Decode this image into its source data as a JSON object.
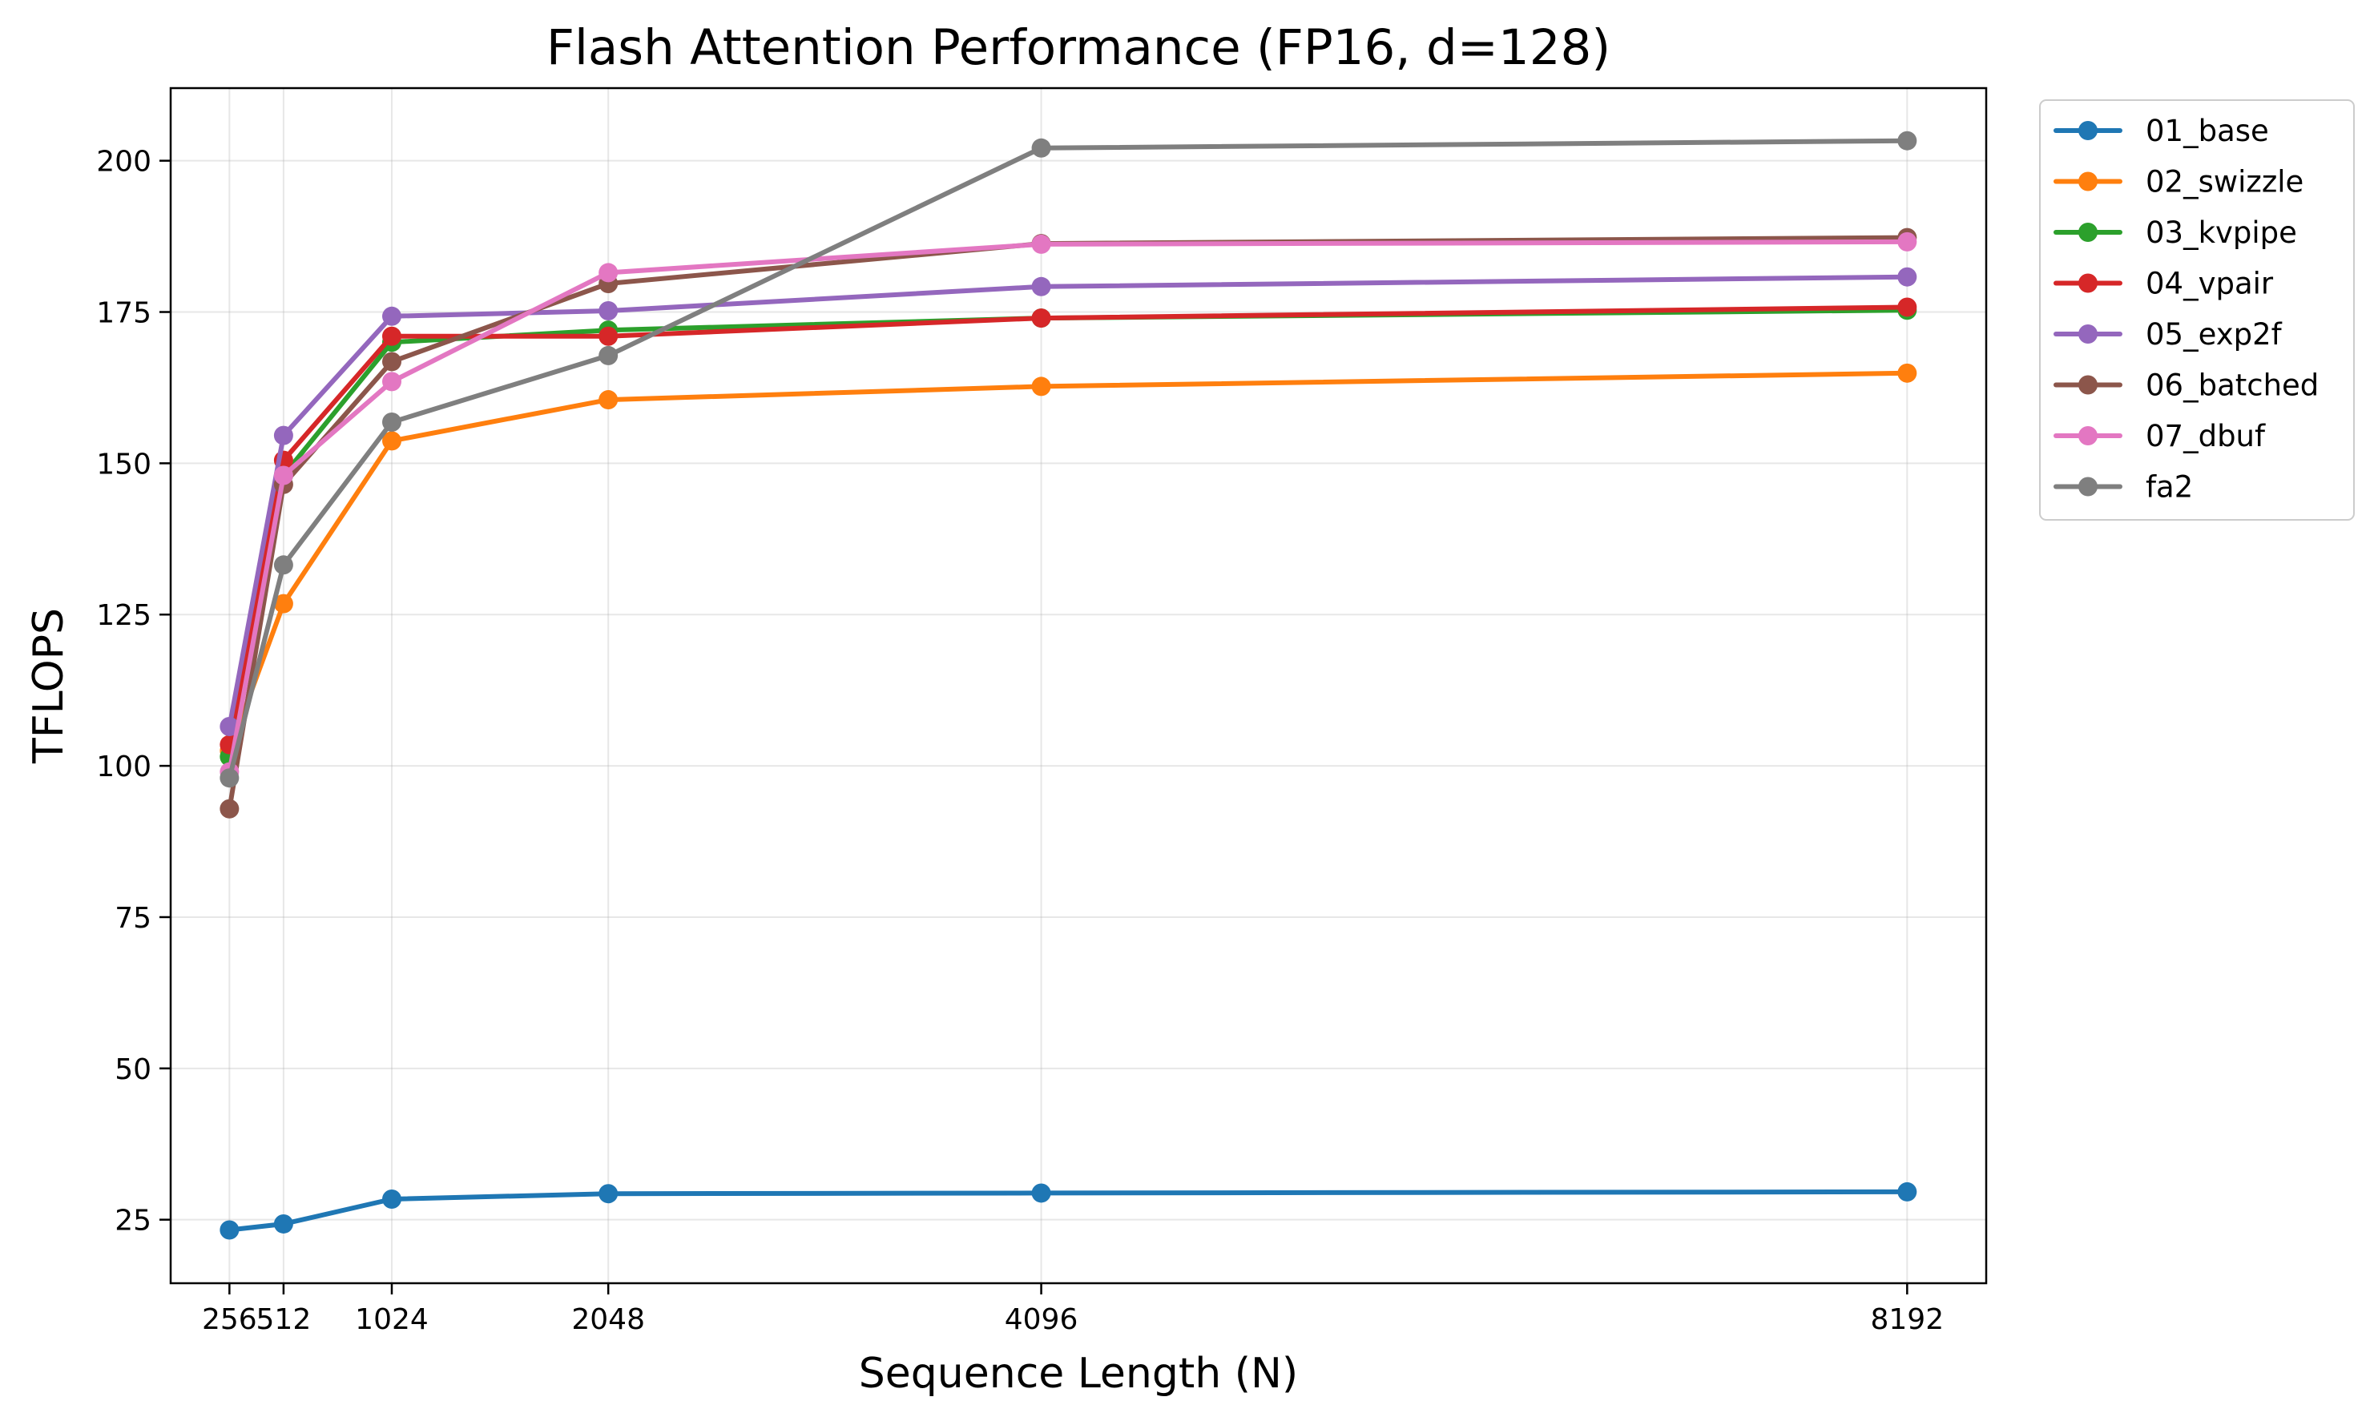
{
  "chart_data": {
    "type": "line",
    "title": "Flash Attention Performance (FP16, d=128)",
    "xlabel": "Sequence Length (N)",
    "ylabel": "TFLOPS",
    "x": [
      256,
      512,
      1024,
      2048,
      4096,
      8192
    ],
    "x_tick_labels": [
      "256",
      "512",
      "1024",
      "2048",
      "4096",
      "8192"
    ],
    "xlim": [
      -22,
      8566
    ],
    "ylim": [
      14.5,
      212
    ],
    "y_ticks": [
      25,
      50,
      75,
      100,
      125,
      150,
      175,
      200
    ],
    "grid": true,
    "legend_position": "outside-top-right",
    "series": [
      {
        "name": "01_base",
        "color": "#1f77b4",
        "values": [
          23.3,
          24.3,
          28.4,
          29.3,
          29.4,
          29.6
        ]
      },
      {
        "name": "02_swizzle",
        "color": "#ff7f0e",
        "values": [
          102.5,
          126.8,
          153.7,
          160.5,
          162.7,
          164.9
        ]
      },
      {
        "name": "03_kvpipe",
        "color": "#2ca02c",
        "values": [
          101.5,
          148.0,
          170.0,
          172.0,
          174.0,
          175.3
        ]
      },
      {
        "name": "04_vpair",
        "color": "#d62728",
        "values": [
          103.5,
          150.5,
          171.0,
          171.0,
          174.0,
          175.8
        ]
      },
      {
        "name": "05_exp2f",
        "color": "#9467bd",
        "values": [
          106.5,
          154.6,
          174.3,
          175.2,
          179.2,
          180.8
        ]
      },
      {
        "name": "06_batched",
        "color": "#8c564b",
        "values": [
          92.9,
          146.5,
          166.8,
          179.7,
          186.3,
          187.3
        ]
      },
      {
        "name": "07_dbuf",
        "color": "#e377c2",
        "values": [
          99.0,
          148.0,
          163.5,
          181.5,
          186.2,
          186.6
        ]
      },
      {
        "name": "fa2",
        "color": "#7f7f7f",
        "values": [
          98.0,
          133.2,
          156.8,
          167.8,
          202.1,
          203.3
        ]
      }
    ]
  }
}
